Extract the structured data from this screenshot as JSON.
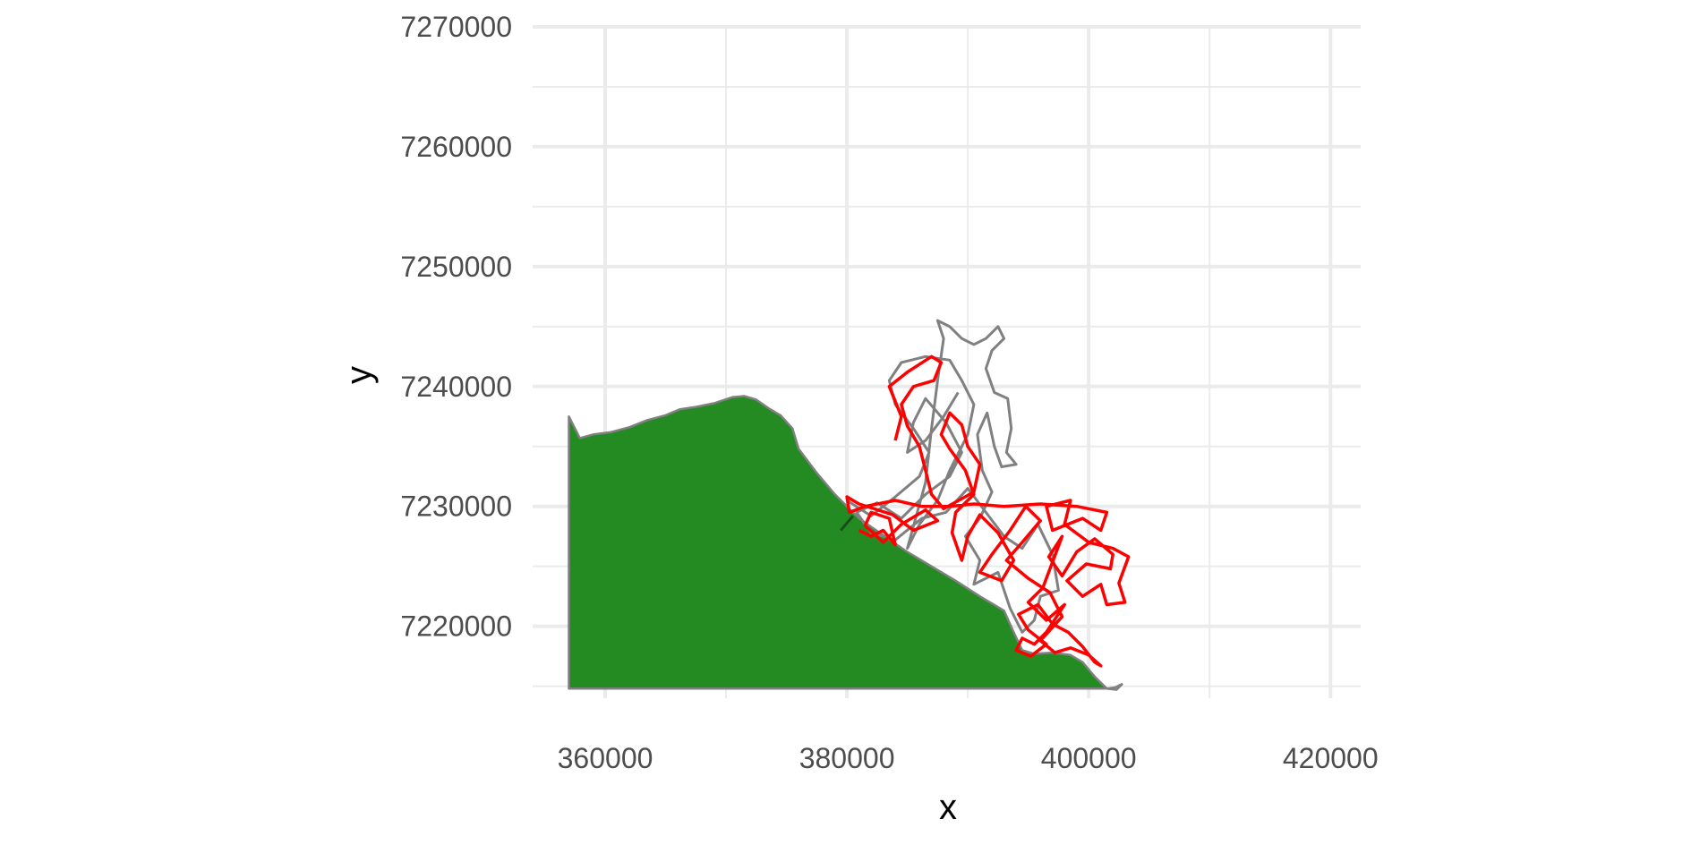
{
  "chart_data": {
    "type": "map",
    "xlabel": "x",
    "ylabel": "y",
    "xlim": [
      354000,
      422500
    ],
    "ylim": [
      7214000,
      7270000
    ],
    "x_ticks": [
      360000,
      380000,
      400000,
      420000
    ],
    "y_ticks": [
      7220000,
      7230000,
      7240000,
      7250000,
      7260000,
      7270000
    ],
    "x_tick_labels": [
      "360000",
      "380000",
      "400000",
      "420000"
    ],
    "y_tick_labels": [
      "7220000",
      "7230000",
      "7240000",
      "7250000",
      "7260000",
      "7270000"
    ],
    "grid": true,
    "colors": {
      "land": "#238b22",
      "coast": "#808080",
      "grey_tracks": "#808080",
      "red_tracks": "#ff0000",
      "grid": "#ebebeb"
    },
    "layers": [
      {
        "kind": "land-polygon",
        "points": [
          [
            357000,
            7214800
          ],
          [
            357000,
            7237500
          ],
          [
            357500,
            7236500
          ],
          [
            357900,
            7235700
          ],
          [
            359000,
            7236000
          ],
          [
            360500,
            7236200
          ],
          [
            362000,
            7236600
          ],
          [
            363500,
            7237200
          ],
          [
            365000,
            7237600
          ],
          [
            366200,
            7238100
          ],
          [
            367500,
            7238300
          ],
          [
            369000,
            7238600
          ],
          [
            370500,
            7239100
          ],
          [
            371500,
            7239200
          ],
          [
            372500,
            7238900
          ],
          [
            373500,
            7238200
          ],
          [
            374500,
            7237600
          ],
          [
            375500,
            7236500
          ],
          [
            376000,
            7234800
          ],
          [
            377500,
            7232800
          ],
          [
            379000,
            7231000
          ],
          [
            381000,
            7229000
          ],
          [
            383000,
            7227600
          ],
          [
            385000,
            7226200
          ],
          [
            387000,
            7225000
          ],
          [
            389000,
            7223800
          ],
          [
            391000,
            7222500
          ],
          [
            393000,
            7221300
          ],
          [
            393800,
            7219500
          ],
          [
            394500,
            7218000
          ],
          [
            395500,
            7217700
          ],
          [
            397000,
            7217800
          ],
          [
            398500,
            7217600
          ],
          [
            399500,
            7217000
          ],
          [
            400500,
            7215800
          ],
          [
            401500,
            7214800
          ]
        ]
      },
      {
        "kind": "coast-tail",
        "points": [
          [
            401500,
            7214800
          ],
          [
            402200,
            7214900
          ],
          [
            402800,
            7215200
          ],
          [
            402300,
            7214700
          ],
          [
            401500,
            7214800
          ]
        ]
      },
      {
        "kind": "grey-tracks",
        "points": [
          [
            380000,
            7230500
          ],
          [
            382000,
            7229200
          ],
          [
            384000,
            7230800
          ],
          [
            386000,
            7232500
          ],
          [
            386800,
            7234500
          ],
          [
            385500,
            7236500
          ],
          [
            384000,
            7238500
          ],
          [
            383500,
            7240500
          ],
          [
            384500,
            7242000
          ],
          [
            386500,
            7242500
          ],
          [
            388500,
            7242200
          ],
          [
            389500,
            7240500
          ],
          [
            390500,
            7238500
          ],
          [
            390000,
            7236000
          ],
          [
            388500,
            7233000
          ],
          [
            387500,
            7230500
          ],
          [
            386000,
            7228500
          ],
          [
            385000,
            7226500
          ],
          [
            386500,
            7232000
          ],
          [
            387000,
            7236500
          ],
          [
            387500,
            7240500
          ],
          [
            388000,
            7244000
          ],
          [
            387500,
            7245500
          ],
          [
            388500,
            7245000
          ],
          [
            389500,
            7244000
          ],
          [
            390500,
            7243500
          ],
          [
            391500,
            7244000
          ],
          [
            392500,
            7245000
          ],
          [
            393000,
            7244000
          ],
          [
            392000,
            7243000
          ],
          [
            391500,
            7241500
          ],
          [
            392200,
            7239500
          ],
          [
            393300,
            7239000
          ],
          [
            393600,
            7236500
          ],
          [
            393200,
            7234500
          ],
          [
            394000,
            7233500
          ],
          [
            392800,
            7233300
          ],
          [
            392200,
            7235000
          ],
          [
            391600,
            7237800
          ],
          [
            390800,
            7236000
          ],
          [
            391200,
            7233000
          ],
          [
            392000,
            7231200
          ],
          [
            391000,
            7229000
          ],
          [
            389800,
            7227500
          ],
          [
            391000,
            7225500
          ],
          [
            390500,
            7223500
          ],
          [
            392500,
            7224500
          ],
          [
            393500,
            7221500
          ],
          [
            394500,
            7219500
          ],
          [
            395500,
            7220500
          ],
          [
            396000,
            7222500
          ],
          [
            397500,
            7223000
          ],
          [
            397000,
            7226000
          ],
          [
            395800,
            7228500
          ],
          [
            394500,
            7226500
          ],
          [
            393000,
            7227500
          ],
          [
            391500,
            7229500
          ],
          [
            390000,
            7231500
          ],
          [
            388200,
            7229500
          ],
          [
            386200,
            7229000
          ],
          [
            384000,
            7227200
          ],
          [
            382000,
            7227800
          ],
          [
            380800,
            7229500
          ],
          [
            382500,
            7230300
          ],
          [
            384500,
            7229000
          ],
          [
            386500,
            7231000
          ],
          [
            388500,
            7232500
          ],
          [
            389500,
            7234500
          ],
          [
            388200,
            7237000
          ],
          [
            386500,
            7239000
          ],
          [
            385500,
            7237000
          ],
          [
            385000,
            7234500
          ],
          [
            386500,
            7235500
          ],
          [
            388000,
            7237500
          ],
          [
            389200,
            7239500
          ]
        ]
      },
      {
        "kind": "red-tracks",
        "points": [
          [
            381000,
            7228000
          ],
          [
            382000,
            7227500
          ],
          [
            383000,
            7228000
          ],
          [
            384000,
            7226800
          ],
          [
            383500,
            7229000
          ],
          [
            382000,
            7229500
          ],
          [
            381500,
            7228400
          ],
          [
            383000,
            7227000
          ],
          [
            384500,
            7228500
          ],
          [
            386500,
            7229700
          ],
          [
            387500,
            7228800
          ],
          [
            385500,
            7228000
          ],
          [
            383800,
            7229300
          ],
          [
            381000,
            7230200
          ],
          [
            380000,
            7230800
          ],
          [
            380200,
            7229500
          ],
          [
            381500,
            7230000
          ],
          [
            384000,
            7230500
          ],
          [
            386200,
            7230000
          ],
          [
            388500,
            7230000
          ],
          [
            390500,
            7230200
          ],
          [
            393000,
            7230000
          ],
          [
            396000,
            7230200
          ],
          [
            399000,
            7230000
          ],
          [
            401500,
            7229500
          ],
          [
            401000,
            7228000
          ],
          [
            399500,
            7229000
          ],
          [
            397000,
            7228000
          ],
          [
            396500,
            7230000
          ],
          [
            398500,
            7230500
          ],
          [
            398000,
            7228500
          ],
          [
            400000,
            7227000
          ],
          [
            402000,
            7226500
          ],
          [
            403300,
            7225800
          ],
          [
            402500,
            7223600
          ],
          [
            403000,
            7222000
          ],
          [
            401500,
            7221800
          ],
          [
            401000,
            7223500
          ],
          [
            399500,
            7222500
          ],
          [
            398200,
            7223800
          ],
          [
            399800,
            7225200
          ],
          [
            401800,
            7224800
          ],
          [
            402000,
            7226000
          ],
          [
            400500,
            7227300
          ],
          [
            399000,
            7226200
          ],
          [
            397800,
            7224200
          ],
          [
            396700,
            7225800
          ],
          [
            397800,
            7227500
          ],
          [
            396200,
            7223200
          ],
          [
            395000,
            7222000
          ],
          [
            396500,
            7220500
          ],
          [
            398000,
            7221800
          ],
          [
            396500,
            7219500
          ],
          [
            395500,
            7218500
          ],
          [
            394500,
            7219000
          ],
          [
            394000,
            7218000
          ],
          [
            395200,
            7217500
          ],
          [
            396500,
            7218500
          ],
          [
            395000,
            7219700
          ],
          [
            394200,
            7221000
          ],
          [
            395800,
            7221800
          ],
          [
            397000,
            7220200
          ],
          [
            398300,
            7219500
          ],
          [
            399500,
            7218300
          ],
          [
            400500,
            7217000
          ],
          [
            401000,
            7216700
          ],
          [
            400000,
            7217600
          ],
          [
            398500,
            7218200
          ],
          [
            397200,
            7217800
          ],
          [
            396000,
            7218800
          ],
          [
            397800,
            7220800
          ],
          [
            396800,
            7222800
          ],
          [
            395000,
            7224000
          ],
          [
            393200,
            7225500
          ],
          [
            394500,
            7227000
          ],
          [
            396000,
            7228800
          ],
          [
            394800,
            7230000
          ],
          [
            393500,
            7228000
          ],
          [
            392000,
            7226000
          ],
          [
            391000,
            7224500
          ],
          [
            392800,
            7223800
          ],
          [
            393800,
            7225500
          ],
          [
            392500,
            7227800
          ],
          [
            391000,
            7229300
          ],
          [
            390000,
            7227500
          ],
          [
            389500,
            7225500
          ],
          [
            388700,
            7227800
          ],
          [
            389000,
            7229500
          ],
          [
            390500,
            7231000
          ],
          [
            389800,
            7233000
          ],
          [
            388500,
            7234800
          ],
          [
            387800,
            7236000
          ],
          [
            388500,
            7237800
          ],
          [
            389500,
            7236800
          ],
          [
            390000,
            7235000
          ],
          [
            391000,
            7233500
          ],
          [
            390500,
            7231200
          ],
          [
            388000,
            7229800
          ],
          [
            387000,
            7231000
          ],
          [
            386500,
            7233000
          ],
          [
            386000,
            7235000
          ],
          [
            385000,
            7236700
          ],
          [
            384500,
            7238500
          ],
          [
            385500,
            7240000
          ],
          [
            387200,
            7240500
          ],
          [
            387800,
            7242000
          ],
          [
            387000,
            7242500
          ],
          [
            385000,
            7241200
          ],
          [
            383500,
            7240000
          ],
          [
            384500,
            7237500
          ],
          [
            384000,
            7235500
          ]
        ]
      },
      {
        "kind": "dark-segment",
        "points": [
          [
            379500,
            7228000
          ],
          [
            380500,
            7229200
          ]
        ]
      }
    ]
  }
}
